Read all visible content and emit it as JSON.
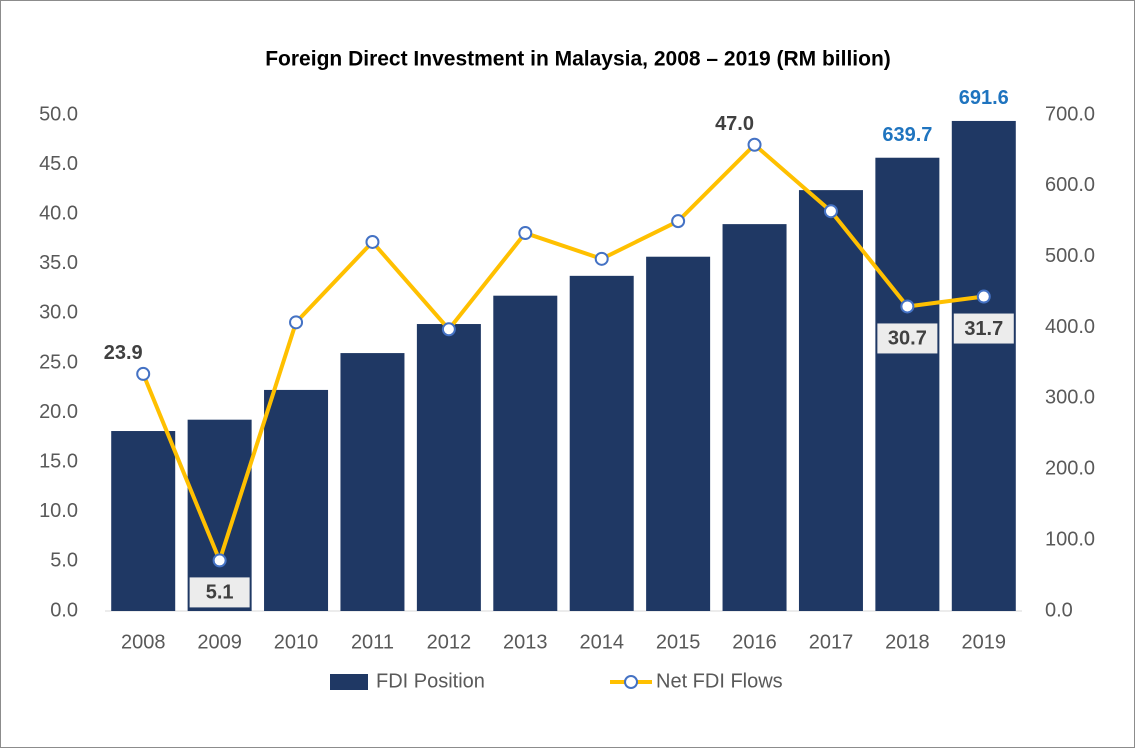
{
  "chart_data": {
    "type": "bar-line",
    "title": "Foreign Direct Investment in Malaysia, 2008 – 2019 (RM billion)",
    "categories": [
      "2008",
      "2009",
      "2010",
      "2011",
      "2012",
      "2013",
      "2014",
      "2015",
      "2016",
      "2017",
      "2018",
      "2019"
    ],
    "series": [
      {
        "name": "FDI Position",
        "type": "bar",
        "axis": "y2",
        "color": "#1f3864",
        "values": [
          254,
          270,
          312,
          364,
          405,
          445,
          473,
          500,
          546,
          594,
          639.7,
          691.6
        ],
        "value_labels": [
          null,
          null,
          null,
          null,
          null,
          null,
          null,
          null,
          null,
          null,
          "639.7",
          "691.6"
        ]
      },
      {
        "name": "Net FDI Flows",
        "type": "line",
        "axis": "y",
        "color": "#ffc000",
        "values": [
          23.9,
          5.1,
          29.1,
          37.2,
          28.4,
          38.1,
          35.5,
          39.3,
          47.0,
          40.3,
          30.7,
          31.7
        ],
        "value_labels": [
          "23.9",
          "5.1",
          null,
          null,
          null,
          null,
          null,
          null,
          "47.0",
          null,
          "30.7",
          "31.7"
        ]
      }
    ],
    "ylim": [
      0,
      50
    ],
    "yticks": [
      {
        "value": 0,
        "label": "0.0"
      },
      {
        "value": 5,
        "label": "5.0"
      },
      {
        "value": 10,
        "label": "10.0"
      },
      {
        "value": 15,
        "label": "15.0"
      },
      {
        "value": 20,
        "label": "20.0"
      },
      {
        "value": 25,
        "label": "25.0"
      },
      {
        "value": 30,
        "label": "30.0"
      },
      {
        "value": 35,
        "label": "35.0"
      },
      {
        "value": 40,
        "label": "40.0"
      },
      {
        "value": 45,
        "label": "45.0"
      },
      {
        "value": 50,
        "label": "50.0"
      }
    ],
    "y2lim": [
      0,
      700
    ],
    "y2ticks": [
      {
        "value": 0,
        "label": "0.0"
      },
      {
        "value": 100,
        "label": "100.0"
      },
      {
        "value": 200,
        "label": "200.0"
      },
      {
        "value": 300,
        "label": "300.0"
      },
      {
        "value": 400,
        "label": "400.0"
      },
      {
        "value": 500,
        "label": "500.0"
      },
      {
        "value": 600,
        "label": "600.0"
      },
      {
        "value": 700,
        "label": "700.0"
      }
    ],
    "legend": "bottom",
    "grid": false
  }
}
